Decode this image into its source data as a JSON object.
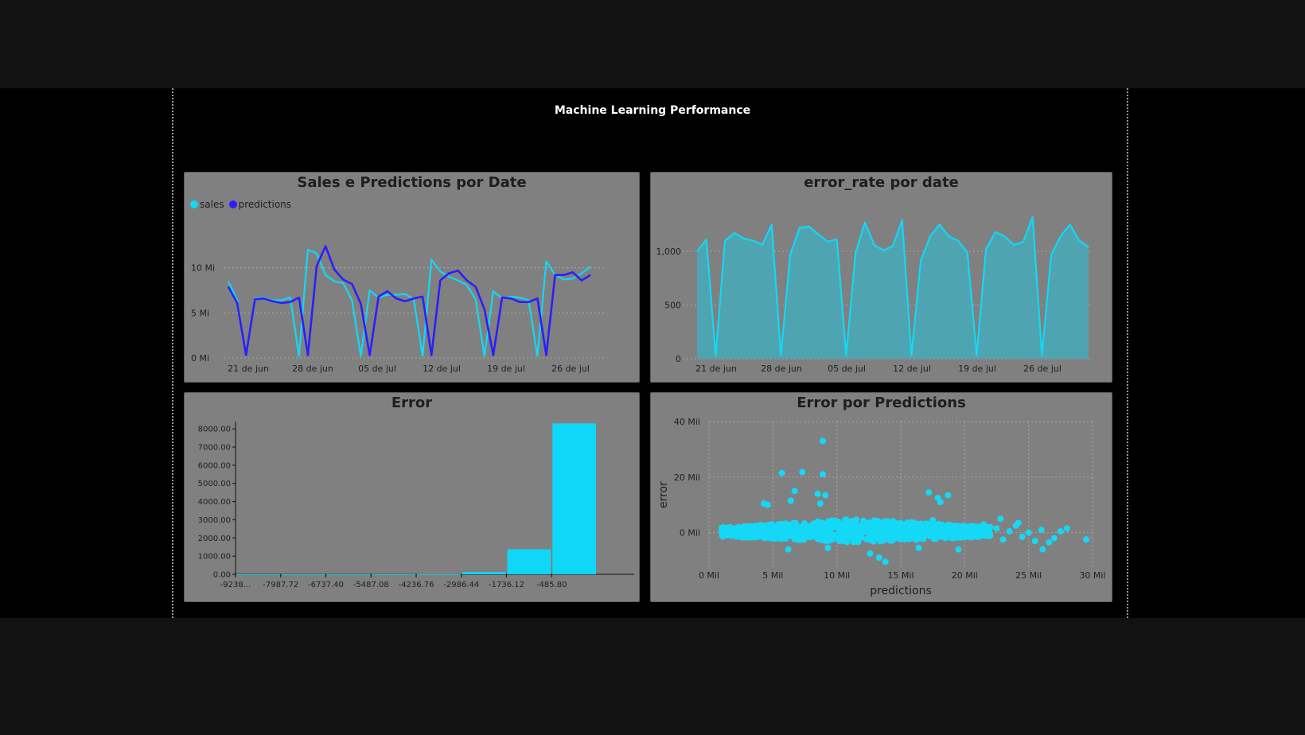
{
  "report": {
    "title": "Machine Learning Performance"
  },
  "colors": {
    "sales": "#12d8f5",
    "predictions": "#2a1fff",
    "area_line": "#12d8f5",
    "area_fill": "#4fa4b1",
    "bar": "#10d6f8",
    "scatter": "#14d8f6",
    "panel_bg": "#808080"
  },
  "chart_data": [
    {
      "id": "sales-predictions",
      "type": "line",
      "title": "Sales e Predictions por Date",
      "legend": [
        "sales",
        "predictions"
      ],
      "x_tick_labels": [
        "21 de jun",
        "28 de jun",
        "05 de jul",
        "12 de jul",
        "19 de jul",
        "26 de jul"
      ],
      "y_tick_labels": [
        "0 Mi",
        "5 Mi",
        "10 Mi"
      ],
      "y_ticks": [
        0,
        5,
        10
      ],
      "ylim": [
        0,
        13.5
      ],
      "grid": true,
      "series": [
        {
          "name": "sales",
          "values": [
            8.5,
            6.4,
            0.2,
            6.6,
            6.7,
            6.4,
            6.4,
            6.7,
            0.2,
            12.0,
            11.6,
            9.2,
            8.5,
            8.3,
            6.4,
            0.2,
            7.5,
            6.7,
            7.0,
            7.0,
            7.1,
            6.5,
            0.2,
            10.9,
            9.6,
            9.0,
            8.6,
            8.1,
            6.5,
            0.2,
            7.4,
            6.6,
            6.8,
            6.7,
            6.4,
            0.2,
            10.7,
            9.2,
            8.7,
            8.8,
            9.4,
            10.1
          ]
        },
        {
          "name": "predictions",
          "values": [
            7.9,
            6.1,
            0.3,
            6.5,
            6.6,
            6.3,
            6.1,
            6.2,
            6.7,
            0.3,
            10.2,
            12.4,
            9.8,
            8.7,
            8.2,
            6.0,
            0.3,
            6.8,
            7.4,
            6.6,
            6.3,
            6.6,
            6.8,
            0.3,
            8.6,
            9.4,
            9.7,
            8.6,
            7.9,
            5.4,
            0.3,
            6.7,
            6.6,
            6.2,
            6.2,
            6.6,
            0.3,
            9.2,
            9.2,
            9.5,
            8.6,
            9.2
          ]
        }
      ]
    },
    {
      "id": "error-rate",
      "type": "area",
      "title": "error_rate por date",
      "x_tick_labels": [
        "21 de jun",
        "28 de jun",
        "05 de jul",
        "12 de jul",
        "19 de jul",
        "26 de jul"
      ],
      "y_tick_labels": [
        "0",
        "500",
        "1,000"
      ],
      "y_ticks": [
        0,
        500,
        1000
      ],
      "ylim": [
        0,
        1400
      ],
      "grid": true,
      "series": [
        {
          "name": "error_rate",
          "values": [
            1000,
            1110,
            30,
            1100,
            1170,
            1120,
            1100,
            1060,
            1250,
            30,
            970,
            1220,
            1230,
            1160,
            1090,
            1110,
            30,
            980,
            1270,
            1060,
            1010,
            1050,
            1290,
            30,
            910,
            1140,
            1250,
            1140,
            1100,
            990,
            30,
            1020,
            1180,
            1140,
            1060,
            1090,
            1320,
            30,
            970,
            1140,
            1250,
            1100,
            1040
          ]
        }
      ]
    },
    {
      "id": "error-histogram",
      "type": "bar",
      "title": "Error",
      "x_tick_labels": [
        "-9238...",
        "-7987.72",
        "-6737.40",
        "-5487.08",
        "-4236.76",
        "-2986.44",
        "-1736.12",
        "-485.80"
      ],
      "y_tick_labels": [
        "0.00",
        "1000.00",
        "2000.00",
        "3000.00",
        "4000.00",
        "5000.00",
        "6000.00",
        "7000.00",
        "8000.00"
      ],
      "y_ticks": [
        0,
        1000,
        2000,
        3000,
        4000,
        5000,
        6000,
        7000,
        8000
      ],
      "ylim": [
        0,
        8400
      ],
      "values": [
        3,
        4,
        5,
        8,
        15,
        130,
        1380,
        8300
      ]
    },
    {
      "id": "error-scatter",
      "type": "scatter",
      "title": "Error por Predictions",
      "xlabel": "predictions",
      "ylabel": "error",
      "x_tick_labels": [
        "0 Mil",
        "5 Mil",
        "10 Mil",
        "15 Mil",
        "20 Mil",
        "25 Mil",
        "30 Mil"
      ],
      "x_ticks": [
        0,
        5,
        10,
        15,
        20,
        25,
        30
      ],
      "y_tick_labels": [
        "0 Mil",
        "20 Mil",
        "40 Mil"
      ],
      "y_ticks": [
        0,
        20,
        40
      ],
      "xlim": [
        0,
        30
      ],
      "ylim": [
        -13,
        40
      ],
      "grid": true,
      "points": [
        [
          2.0,
          0.5
        ],
        [
          2.5,
          -0.5
        ],
        [
          3.0,
          1.0
        ],
        [
          3.5,
          -1.0
        ],
        [
          4.0,
          2.0
        ],
        [
          4.5,
          0.0
        ],
        [
          5.0,
          1.5
        ],
        [
          5.5,
          -2.0
        ],
        [
          6.0,
          3.0
        ],
        [
          6.5,
          0.5
        ],
        [
          7.0,
          -1.5
        ],
        [
          7.5,
          2.5
        ],
        [
          8.0,
          0.0
        ],
        [
          8.5,
          4.0
        ],
        [
          9.0,
          -2.0
        ],
        [
          9.5,
          1.0
        ],
        [
          10.0,
          3.5
        ],
        [
          10.5,
          -1.0
        ],
        [
          11.0,
          2.0
        ],
        [
          11.5,
          0.0
        ],
        [
          12.0,
          3.0
        ],
        [
          12.5,
          -2.5
        ],
        [
          13.0,
          1.5
        ],
        [
          13.5,
          0.5
        ],
        [
          14.0,
          4.0
        ],
        [
          14.5,
          -1.5
        ],
        [
          15.0,
          2.0
        ],
        [
          15.5,
          0.0
        ],
        [
          16.0,
          3.0
        ],
        [
          16.5,
          -2.0
        ],
        [
          17.0,
          1.0
        ],
        [
          17.5,
          4.5
        ],
        [
          18.0,
          0.0
        ],
        [
          18.5,
          -1.0
        ],
        [
          19.0,
          2.5
        ],
        [
          19.5,
          0.5
        ],
        [
          20.0,
          -1.5
        ],
        [
          20.5,
          1.0
        ],
        [
          21.0,
          0.0
        ],
        [
          21.5,
          3.0
        ],
        [
          22.0,
          -1.0
        ],
        [
          22.5,
          1.5
        ],
        [
          23.0,
          -2.5
        ],
        [
          23.5,
          0.5
        ],
        [
          24.0,
          2.5
        ],
        [
          24.5,
          -1.5
        ],
        [
          25.0,
          0.0
        ],
        [
          25.5,
          -3.0
        ],
        [
          26.0,
          1.0
        ],
        [
          27.0,
          -2.0
        ],
        [
          27.5,
          0.5
        ],
        [
          28.0,
          1.5
        ],
        [
          29.5,
          -2.5
        ],
        [
          8.9,
          33.0
        ],
        [
          5.7,
          21.5
        ],
        [
          7.3,
          21.8
        ],
        [
          8.9,
          21.0
        ],
        [
          4.3,
          10.5
        ],
        [
          4.6,
          10.0
        ],
        [
          6.7,
          15.0
        ],
        [
          8.5,
          14.0
        ],
        [
          9.1,
          13.5
        ],
        [
          6.4,
          11.5
        ],
        [
          8.7,
          10.5
        ],
        [
          17.2,
          14.5
        ],
        [
          17.9,
          12.5
        ],
        [
          18.7,
          13.5
        ],
        [
          18.1,
          11.0
        ],
        [
          22.8,
          5.0
        ],
        [
          24.2,
          3.5
        ],
        [
          13.3,
          -9.0
        ],
        [
          13.8,
          -10.5
        ],
        [
          12.6,
          -7.5
        ],
        [
          16.4,
          -5.5
        ],
        [
          19.5,
          -6.0
        ],
        [
          26.1,
          -6.0
        ],
        [
          26.6,
          -3.5
        ],
        [
          6.2,
          -6.0
        ],
        [
          9.3,
          -5.5
        ]
      ],
      "dense_bands": [
        {
          "x0": 1.0,
          "x1": 22.0,
          "y_min": -3.5,
          "y_max": 5.0
        }
      ]
    }
  ]
}
